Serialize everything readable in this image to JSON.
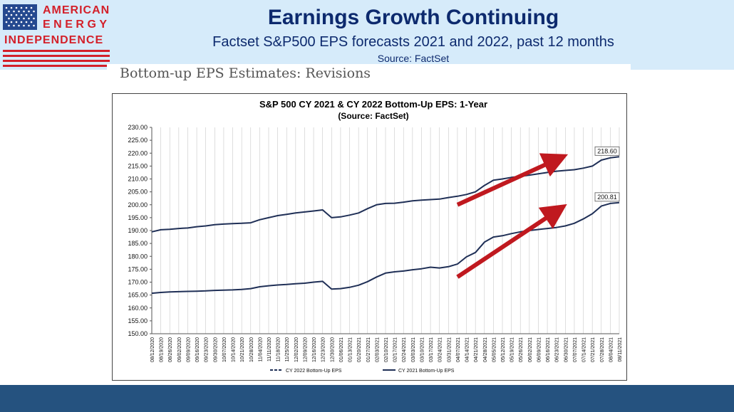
{
  "brand": {
    "line1": "AMERICAN",
    "line2": "ENERGY",
    "line3": "INDEPENDENCE",
    "flag_icon": "us-flag-icon",
    "accent_color": "#d3202a"
  },
  "header": {
    "title": "Earnings Growth Continuing",
    "subtitle": "Factset S&P500 EPS forecasts 2021 and 2022, past 12 months",
    "source": "Source: FactSet",
    "band_color": "#d6ebfa",
    "title_color": "#0d2a6e"
  },
  "section_label": "Bottom-up EPS Estimates: Revisions",
  "footer": {
    "color": "#25527f"
  },
  "chart_data": {
    "type": "line",
    "title": "S&P 500 CY 2021 & CY 2022 Bottom-Up EPS: 1-Year",
    "subtitle": "(Source: FactSet)",
    "ylim": [
      150,
      230
    ],
    "ytick_labels": [
      "230.00",
      "225.00",
      "220.00",
      "215.00",
      "210.00",
      "205.00",
      "200.00",
      "195.00",
      "190.00",
      "185.00",
      "180.00",
      "175.00",
      "170.00",
      "165.00",
      "160.00",
      "155.00",
      "150.00"
    ],
    "xtick_labels": [
      "08/12/2020",
      "08/19/2020",
      "08/26/2020",
      "09/02/2020",
      "09/09/2020",
      "09/16/2020",
      "09/23/2020",
      "09/30/2020",
      "10/07/2020",
      "10/14/2020",
      "10/21/2020",
      "10/28/2020",
      "11/04/2020",
      "11/11/2020",
      "11/18/2020",
      "11/25/2020",
      "12/02/2020",
      "12/09/2020",
      "12/16/2020",
      "12/23/2020",
      "12/30/2020",
      "01/06/2021",
      "01/13/2021",
      "01/20/2021",
      "01/27/2021",
      "02/03/2021",
      "02/10/2021",
      "02/17/2021",
      "02/24/2021",
      "03/03/2021",
      "03/10/2021",
      "03/17/2021",
      "03/24/2021",
      "03/31/2021",
      "04/07/2021",
      "04/14/2021",
      "04/21/2021",
      "04/28/2021",
      "05/05/2021",
      "05/12/2021",
      "05/19/2021",
      "05/26/2021",
      "06/02/2021",
      "06/09/2021",
      "06/16/2021",
      "06/23/2021",
      "06/30/2021",
      "07/07/2021",
      "07/14/2021",
      "07/21/2021",
      "07/28/2021",
      "08/04/2021",
      "08/11/2021"
    ],
    "series": [
      {
        "name": "CY 2022 Bottom-Up EPS",
        "color": "#1f2f56",
        "values": [
          189.5,
          190.3,
          190.5,
          190.8,
          191.0,
          191.5,
          191.8,
          192.3,
          192.5,
          192.7,
          192.8,
          193.0,
          194.2,
          195.0,
          195.8,
          196.3,
          196.8,
          197.2,
          197.6,
          198.0,
          195.0,
          195.3,
          196.0,
          196.8,
          198.5,
          200.0,
          200.5,
          200.6,
          201.0,
          201.5,
          201.8,
          202.0,
          202.2,
          202.8,
          203.3,
          204.0,
          205.0,
          207.5,
          209.5,
          210.0,
          210.6,
          211.0,
          211.5,
          212.0,
          212.5,
          213.0,
          213.3,
          213.6,
          214.2,
          215.0,
          217.3,
          218.2,
          218.6
        ],
        "end_label": "218.60"
      },
      {
        "name": "CY 2021 Bottom-Up EPS",
        "color": "#1f2f56",
        "values": [
          165.7,
          166.0,
          166.2,
          166.3,
          166.4,
          166.5,
          166.6,
          166.8,
          166.9,
          167.0,
          167.2,
          167.5,
          168.2,
          168.6,
          168.9,
          169.1,
          169.4,
          169.6,
          170.0,
          170.3,
          167.3,
          167.5,
          168.0,
          168.8,
          170.2,
          172.0,
          173.5,
          174.0,
          174.3,
          174.8,
          175.2,
          175.8,
          175.5,
          176.0,
          177.0,
          179.8,
          181.5,
          185.5,
          187.5,
          188.0,
          188.8,
          189.5,
          190.0,
          190.4,
          190.8,
          191.2,
          191.8,
          192.8,
          194.5,
          196.5,
          199.5,
          200.5,
          200.81
        ],
        "end_label": "200.81"
      }
    ],
    "legend": {
      "placement": "bottom-center"
    },
    "grid": {
      "vertical": true,
      "horizontal": false
    },
    "annotations": [
      {
        "type": "arrow",
        "color": "#c0191f",
        "target_series": "CY 2022 Bottom-Up EPS"
      },
      {
        "type": "arrow",
        "color": "#c0191f",
        "target_series": "CY 2021 Bottom-Up EPS"
      }
    ]
  }
}
